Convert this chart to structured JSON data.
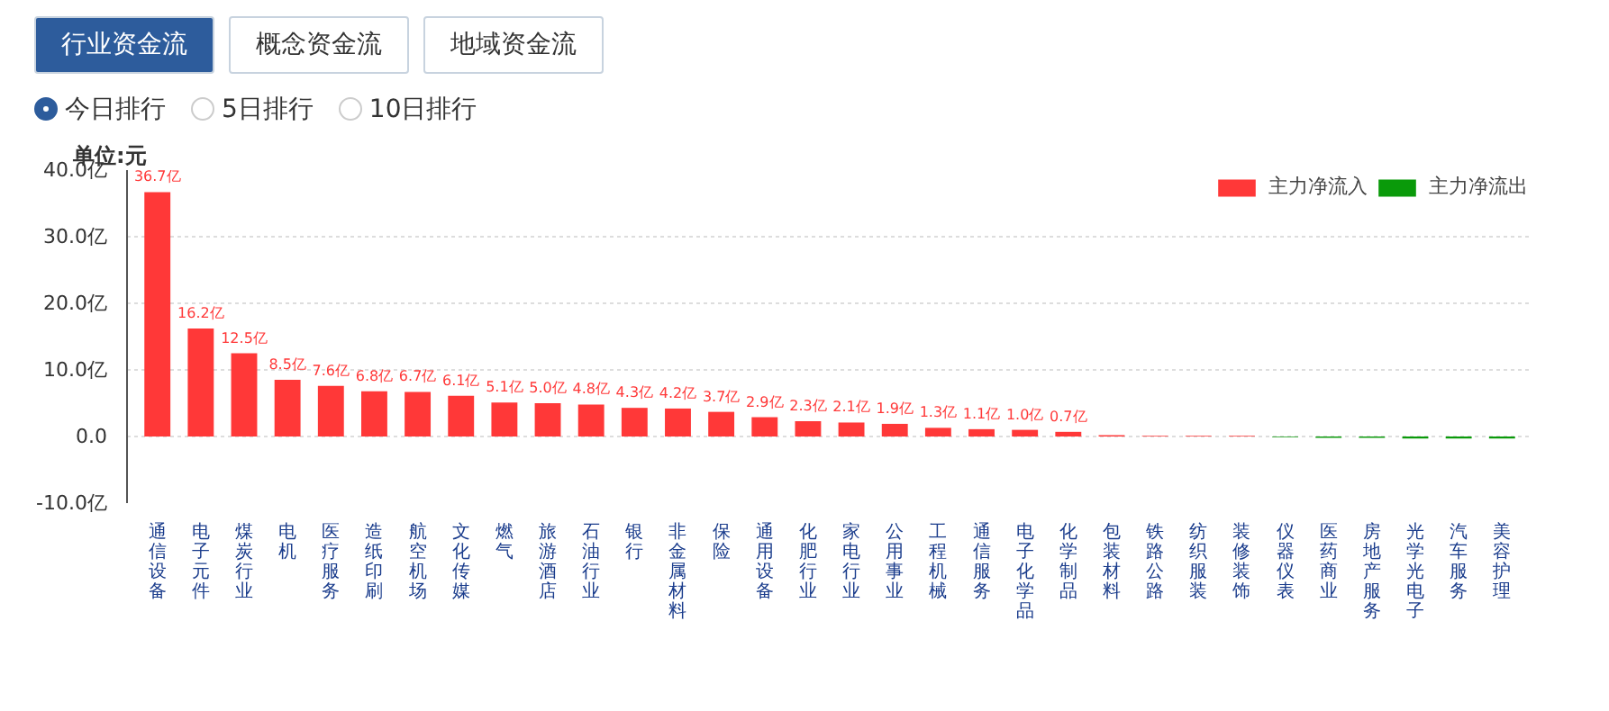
{
  "chart_data": {
    "type": "bar",
    "ylabel": "单位:元",
    "annotations": [
      "行业资金流",
      "概念资金流",
      "地域资金流",
      "今日排行",
      "5日排行",
      "10日排行"
    ],
    "categories": [
      "通信设备",
      "电子元件",
      "煤炭行业",
      "电机",
      "医疗服务",
      "造纸印刷",
      "航空机场",
      "文化传媒",
      "燃气",
      "旅游酒店",
      "石油行业",
      "银行",
      "非金属材料",
      "保险",
      "通用设备",
      "化肥行业",
      "家电行业",
      "公用事业",
      "工程机械",
      "通信服务",
      "电子化学品",
      "化学制品",
      "包装材料",
      "铁路公路",
      "纺织服装",
      "装修装饰",
      "仪器仪表",
      "医药商业",
      "房地产服务",
      "光学光电子",
      "汽车服务",
      "美容护理"
    ],
    "series": [
      {
        "name": "主力净流入",
        "color": "#ff3838",
        "values": [
          36.7,
          16.2,
          12.5,
          8.5,
          7.6,
          6.8,
          6.7,
          6.1,
          5.1,
          5.0,
          4.8,
          4.3,
          4.2,
          3.7,
          2.9,
          2.3,
          2.1,
          1.9,
          1.3,
          1.1,
          1.0,
          0.7,
          0.2,
          0.1,
          0.1,
          0.1,
          null,
          null,
          null,
          null,
          null,
          null
        ],
        "value_labels": [
          "36.7亿",
          "16.2亿",
          "12.5亿",
          "8.5亿",
          "7.6亿",
          "6.8亿",
          "6.7亿",
          "6.1亿",
          "5.1亿",
          "5.0亿",
          "4.8亿",
          "4.3亿",
          "4.2亿",
          "3.7亿",
          "2.9亿",
          "2.3亿",
          "2.1亿",
          "1.9亿",
          "1.3亿",
          "1.1亿",
          "1.0亿",
          "0.7亿",
          null,
          null,
          null,
          null,
          null,
          null,
          null,
          null,
          null,
          null
        ]
      },
      {
        "name": "主力净流出",
        "color": "#0a9a0a",
        "values": [
          null,
          null,
          null,
          null,
          null,
          null,
          null,
          null,
          null,
          null,
          null,
          null,
          null,
          null,
          null,
          null,
          null,
          null,
          null,
          null,
          null,
          null,
          null,
          null,
          null,
          null,
          -0.1,
          -0.2,
          -0.2,
          -0.3,
          -0.3,
          -0.3
        ]
      }
    ],
    "ylim": [
      -10,
      40
    ],
    "yticks": [
      {
        "value": -10,
        "label": "-10.0亿"
      },
      {
        "value": 0,
        "label": "0.0"
      },
      {
        "value": 10,
        "label": "10.0亿"
      },
      {
        "value": 20,
        "label": "20.0亿"
      },
      {
        "value": 30,
        "label": "30.0亿"
      },
      {
        "value": 40,
        "label": "40.0亿"
      }
    ],
    "grid": "y",
    "legend": "top right"
  }
}
